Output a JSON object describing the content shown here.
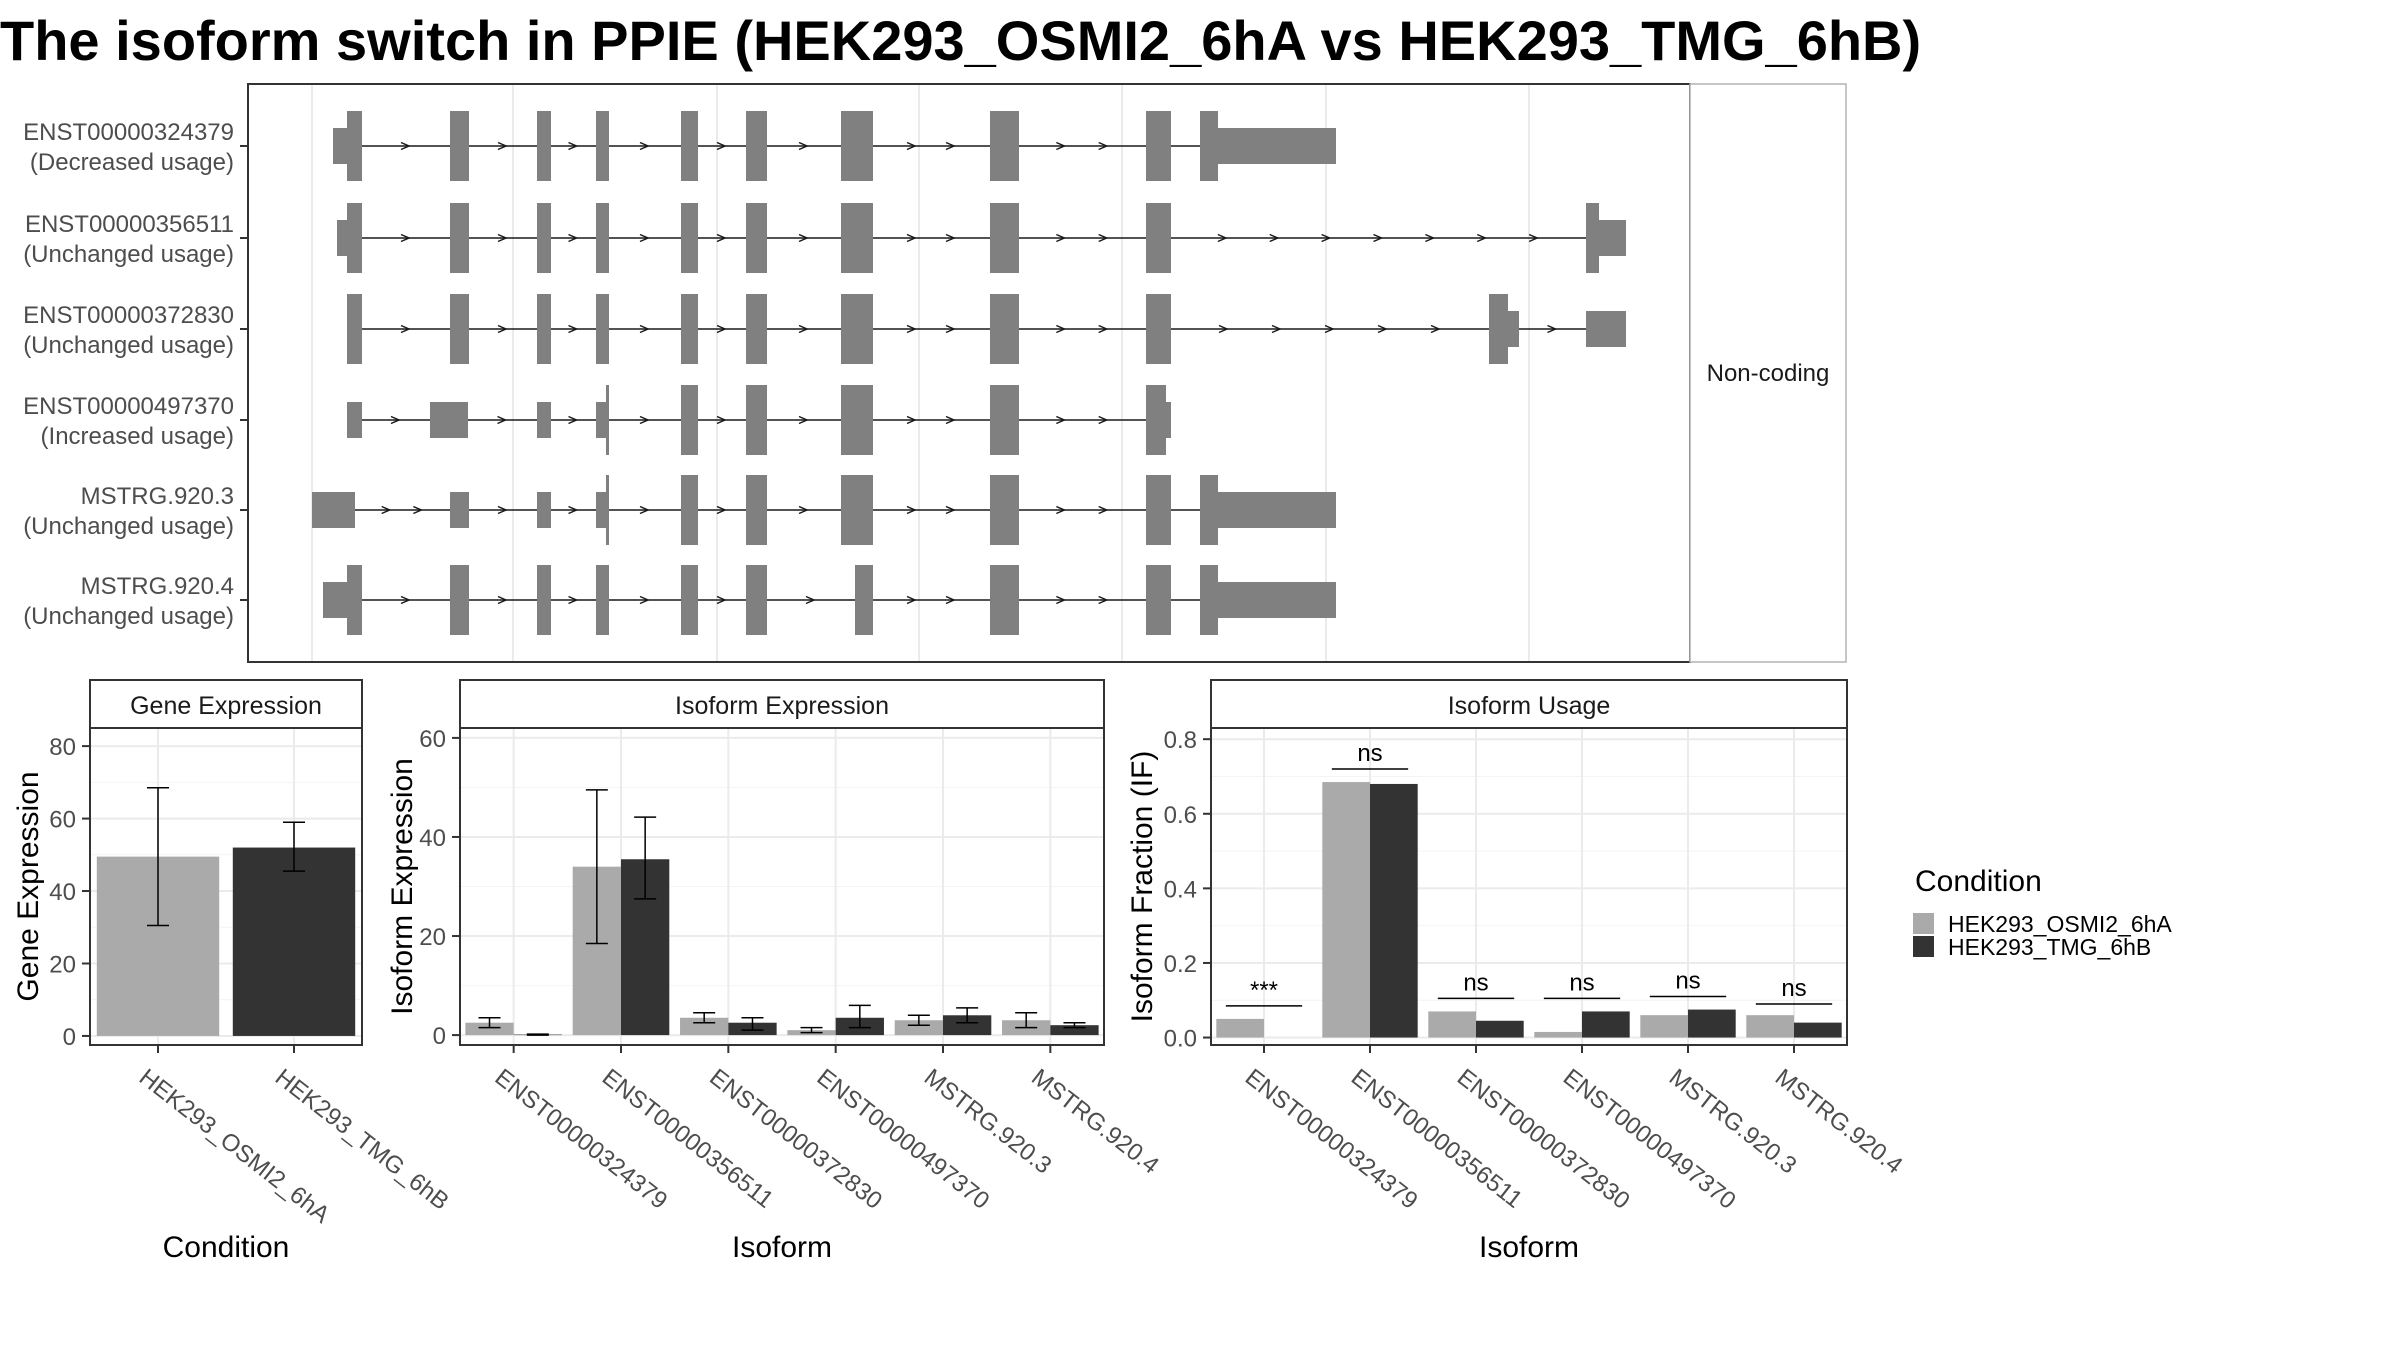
{
  "title": "The isoform switch in PPIE (HEK293_OSMI2_6hA vs HEK293_TMG_6hB)",
  "colors": {
    "cond_a": "#aaaaaa",
    "cond_b": "#333333",
    "exon": "#808080",
    "grid": "#ebebeb",
    "panel_border": "#333333",
    "strip_fill": "#ffffff"
  },
  "transcripts": {
    "facet_label": "Non-coding",
    "rows": [
      {
        "id": "ENST00000324379",
        "usage": "(Decreased usage)"
      },
      {
        "id": "ENST00000356511",
        "usage": "(Unchanged usage)"
      },
      {
        "id": "ENST00000372830",
        "usage": "(Unchanged usage)"
      },
      {
        "id": "ENST00000497370",
        "usage": "(Increased usage)"
      },
      {
        "id": "MSTRG.920.3",
        "usage": "(Unchanged usage)"
      },
      {
        "id": "MSTRG.920.4",
        "usage": "(Unchanged usage)"
      }
    ]
  },
  "chart_data": [
    {
      "type": "bar",
      "title": "Gene Expression",
      "xlabel": "Condition",
      "ylabel": "Gene Expression",
      "ylim": [
        -2.5,
        85
      ],
      "yticks": [
        0,
        20,
        40,
        60,
        80
      ],
      "categories": [
        "HEK293_OSMI2_6hA",
        "HEK293_TMG_6hB"
      ],
      "series": [
        {
          "values": [
            49.5,
            52.0
          ],
          "errors": [
            [
              30.5,
              68.5
            ],
            [
              45.5,
              59.0
            ]
          ]
        }
      ]
    },
    {
      "type": "bar",
      "title": "Isoform Expression",
      "xlabel": "Isoform",
      "ylabel": "Isoform Expression",
      "ylim": [
        -2,
        62
      ],
      "yticks": [
        0,
        20,
        40,
        60
      ],
      "categories": [
        "ENST00000324379",
        "ENST00000356511",
        "ENST00000372830",
        "ENST00000497370",
        "MSTRG.920.3",
        "MSTRG.920.4"
      ],
      "series": [
        {
          "name": "HEK293_OSMI2_6hA",
          "values": [
            2.5,
            34.0,
            3.5,
            1.0,
            3.0,
            3.0
          ],
          "errors": [
            [
              1.5,
              3.5
            ],
            [
              18.5,
              49.5
            ],
            [
              2.5,
              4.5
            ],
            [
              0.5,
              1.5
            ],
            [
              2.0,
              4.0
            ],
            [
              1.5,
              4.5
            ]
          ]
        },
        {
          "name": "HEK293_TMG_6hB",
          "values": [
            0.1,
            35.5,
            2.5,
            3.5,
            4.0,
            2.0
          ],
          "errors": [
            [
              0.0,
              0.2
            ],
            [
              27.5,
              44.0
            ],
            [
              1.0,
              3.5
            ],
            [
              1.5,
              6.0
            ],
            [
              2.5,
              5.5
            ],
            [
              1.5,
              2.5
            ]
          ]
        }
      ]
    },
    {
      "type": "bar",
      "title": "Isoform Usage",
      "xlabel": "Isoform",
      "ylabel": "Isoform Fraction (IF)",
      "ylim": [
        -0.02,
        0.83
      ],
      "yticks": [
        0.0,
        0.2,
        0.4,
        0.6,
        0.8
      ],
      "categories": [
        "ENST00000324379",
        "ENST00000356511",
        "ENST00000372830",
        "ENST00000497370",
        "MSTRG.920.3",
        "MSTRG.920.4"
      ],
      "series": [
        {
          "name": "HEK293_OSMI2_6hA",
          "values": [
            0.05,
            0.685,
            0.07,
            0.015,
            0.06,
            0.06
          ]
        },
        {
          "name": "HEK293_TMG_6hB",
          "values": [
            0.0,
            0.68,
            0.045,
            0.07,
            0.075,
            0.04
          ]
        }
      ],
      "significance": [
        "***",
        "ns",
        "ns",
        "ns",
        "ns",
        "ns"
      ],
      "sig_line_y": [
        0.085,
        0.72,
        0.105,
        0.105,
        0.11,
        0.09
      ]
    }
  ],
  "legend": {
    "title": "Condition",
    "items": [
      "HEK293_OSMI2_6hA",
      "HEK293_TMG_6hB"
    ]
  }
}
